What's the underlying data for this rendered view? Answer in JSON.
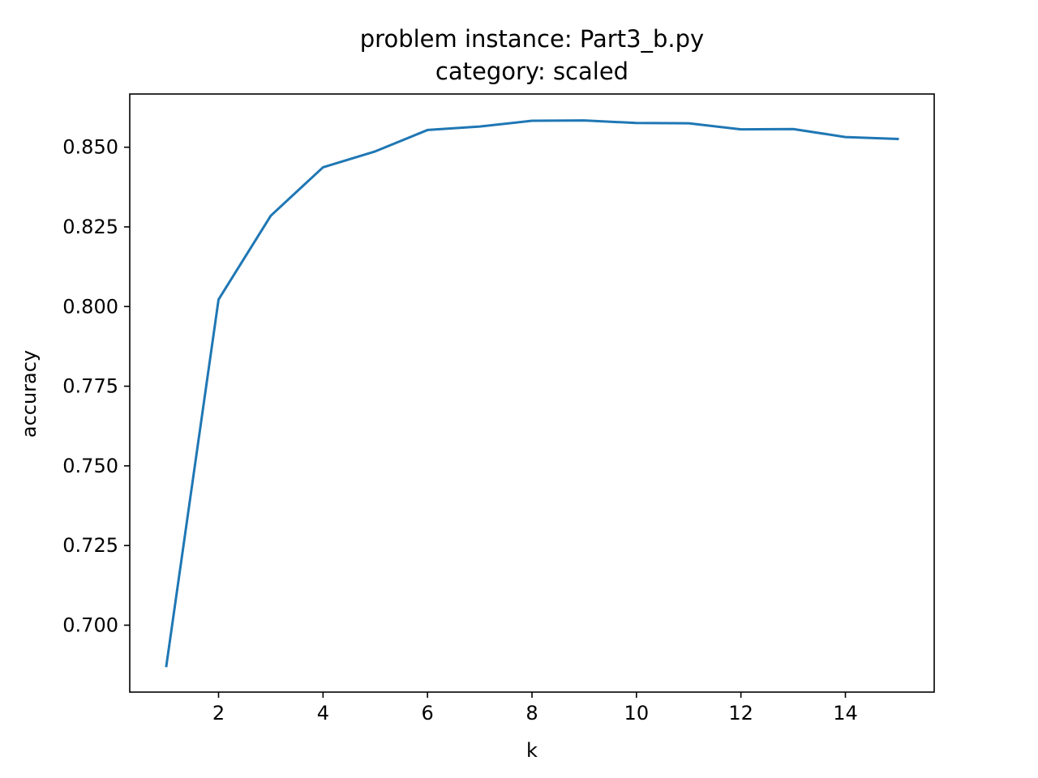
{
  "chart_data": {
    "type": "line",
    "title": "problem instance: Part3_b.py",
    "subtitle": "category: scaled",
    "xlabel": "k",
    "ylabel": "accuracy",
    "xlim": [
      0.3,
      15.7
    ],
    "ylim": [
      0.679,
      0.8667
    ],
    "x_ticks": [
      2,
      4,
      6,
      8,
      10,
      12,
      14
    ],
    "x_tick_labels": [
      "2",
      "4",
      "6",
      "8",
      "10",
      "12",
      "14"
    ],
    "y_ticks": [
      0.7,
      0.725,
      0.75,
      0.775,
      0.8,
      0.825,
      0.85
    ],
    "y_tick_labels": [
      "0.700",
      "0.725",
      "0.750",
      "0.775",
      "0.800",
      "0.825",
      "0.850"
    ],
    "grid": false,
    "series": [
      {
        "color": "#1f77b4",
        "x": [
          1,
          2,
          3,
          4,
          5,
          6,
          7,
          8,
          9,
          10,
          11,
          12,
          13,
          14,
          15
        ],
        "values": [
          0.6872,
          0.8022,
          0.8285,
          0.8437,
          0.8487,
          0.8554,
          0.8565,
          0.8583,
          0.8584,
          0.8576,
          0.8575,
          0.8556,
          0.8557,
          0.8532,
          0.8526
        ]
      }
    ]
  }
}
